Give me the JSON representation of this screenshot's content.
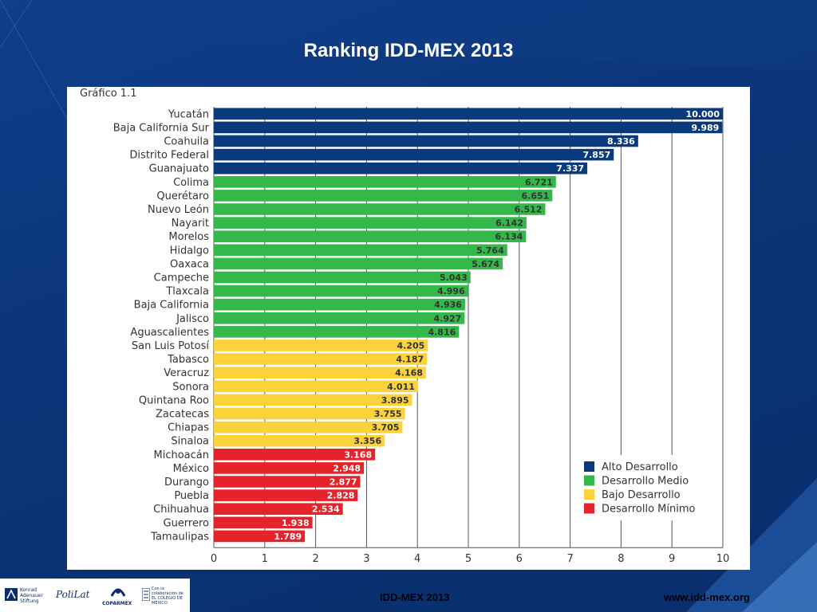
{
  "slide": {
    "title": "Ranking IDD-MEX 2013",
    "footer_center": "IDD-MEX  2013",
    "footer_right": "www.idd-mex.org",
    "logos": [
      "Konrad Adenauer Stiftung",
      "PoliLat",
      "COPARMEX",
      "Con la colaboración de EL COLEGIO DE MÉXICO"
    ]
  },
  "chart_label": "Gráfico 1.1",
  "chart_data": {
    "type": "bar",
    "orientation": "horizontal",
    "title": "Ranking IDD-MEX 2013",
    "xlabel": "",
    "ylabel": "",
    "xlim": [
      0,
      10
    ],
    "x_ticks": [
      0,
      1,
      2,
      3,
      4,
      5,
      6,
      7,
      8,
      9,
      10
    ],
    "grid": "vertical",
    "legend_position": "bottom-right",
    "groups": [
      {
        "name": "Alto Desarrollo",
        "color": "#0b3a7c"
      },
      {
        "name": "Desarrollo Medio",
        "color": "#35b84a"
      },
      {
        "name": "Bajo Desarrollo",
        "color": "#fcd23a"
      },
      {
        "name": "Desarrollo Mínimo",
        "color": "#e4242a"
      }
    ],
    "bars": [
      {
        "label": "Yucatán",
        "value": 10.0,
        "display": "10.000",
        "group": 0
      },
      {
        "label": "Baja California Sur",
        "value": 9.989,
        "display": "9.989",
        "group": 0
      },
      {
        "label": "Coahuila",
        "value": 8.336,
        "display": "8.336",
        "group": 0
      },
      {
        "label": "Distrito Federal",
        "value": 7.857,
        "display": "7.857",
        "group": 0
      },
      {
        "label": "Guanajuato",
        "value": 7.337,
        "display": "7.337",
        "group": 0
      },
      {
        "label": "Colima",
        "value": 6.721,
        "display": "6.721",
        "group": 1
      },
      {
        "label": "Querétaro",
        "value": 6.651,
        "display": "6.651",
        "group": 1
      },
      {
        "label": "Nuevo León",
        "value": 6.512,
        "display": "6.512",
        "group": 1
      },
      {
        "label": "Nayarit",
        "value": 6.142,
        "display": "6.142",
        "group": 1
      },
      {
        "label": "Morelos",
        "value": 6.134,
        "display": "6.134",
        "group": 1
      },
      {
        "label": "Hidalgo",
        "value": 5.764,
        "display": "5.764",
        "group": 1
      },
      {
        "label": "Oaxaca",
        "value": 5.674,
        "display": "5.674",
        "group": 1
      },
      {
        "label": "Campeche",
        "value": 5.043,
        "display": "5.043",
        "group": 1
      },
      {
        "label": "Tlaxcala",
        "value": 4.996,
        "display": "4.996",
        "group": 1
      },
      {
        "label": "Baja California",
        "value": 4.936,
        "display": "4.936",
        "group": 1
      },
      {
        "label": "Jalisco",
        "value": 4.927,
        "display": "4.927",
        "group": 1
      },
      {
        "label": "Aguascalientes",
        "value": 4.816,
        "display": "4.816",
        "group": 1
      },
      {
        "label": "San Luis Potosí",
        "value": 4.205,
        "display": "4.205",
        "group": 2
      },
      {
        "label": "Tabasco",
        "value": 4.187,
        "display": "4.187",
        "group": 2
      },
      {
        "label": "Veracruz",
        "value": 4.168,
        "display": "4.168",
        "group": 2
      },
      {
        "label": "Sonora",
        "value": 4.011,
        "display": "4.011",
        "group": 2
      },
      {
        "label": "Quintana Roo",
        "value": 3.895,
        "display": "3.895",
        "group": 2
      },
      {
        "label": "Zacatecas",
        "value": 3.755,
        "display": "3.755",
        "group": 2
      },
      {
        "label": "Chiapas",
        "value": 3.705,
        "display": "3.705",
        "group": 2
      },
      {
        "label": "Sinaloa",
        "value": 3.356,
        "display": "3.356",
        "group": 2
      },
      {
        "label": "Michoacán",
        "value": 3.168,
        "display": "3.168",
        "group": 3
      },
      {
        "label": "México",
        "value": 2.948,
        "display": "2.948",
        "group": 3
      },
      {
        "label": "Durango",
        "value": 2.877,
        "display": "2.877",
        "group": 3
      },
      {
        "label": "Puebla",
        "value": 2.828,
        "display": "2.828",
        "group": 3
      },
      {
        "label": "Chihuahua",
        "value": 2.534,
        "display": "2.534",
        "group": 3
      },
      {
        "label": "Guerrero",
        "value": 1.938,
        "display": "1.938",
        "group": 3
      },
      {
        "label": "Tamaulipas",
        "value": 1.789,
        "display": "1.789",
        "group": 3
      }
    ]
  }
}
